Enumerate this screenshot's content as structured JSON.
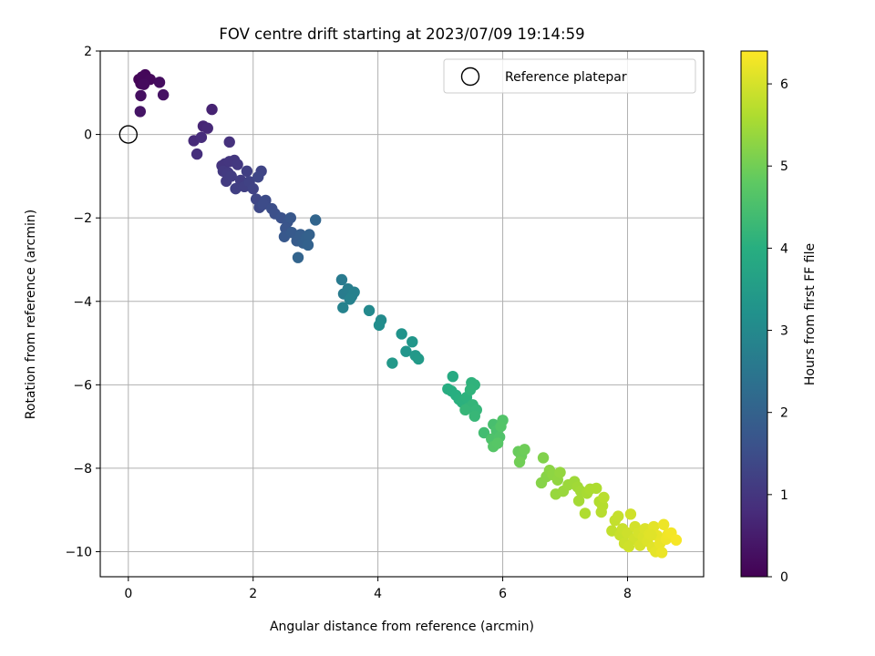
{
  "chart_data": {
    "type": "scatter",
    "title": "FOV centre drift starting at 2023/07/09 19:14:59",
    "xlabel": "Angular distance from reference (arcmin)",
    "ylabel": "Rotation from reference (arcmin)",
    "xlim": [
      -0.45,
      9.22
    ],
    "ylim": [
      -10.6,
      2.0
    ],
    "xticks": [
      0,
      2,
      4,
      6,
      8
    ],
    "yticks": [
      2,
      0,
      -2,
      -4,
      -6,
      -8,
      -10
    ],
    "grid": true,
    "legend": {
      "placement": "top-right",
      "entries": [
        "Reference platepar"
      ]
    },
    "reference_point": {
      "x": 0,
      "y": 0
    },
    "colorbar": {
      "label": "Hours from first FF file",
      "range": [
        0,
        6.4
      ],
      "ticks": [
        0,
        1,
        2,
        3,
        4,
        5,
        6
      ],
      "colormap": "viridis"
    },
    "points": [
      {
        "x": 0.17,
        "y": 1.32,
        "h": 0.05
      },
      {
        "x": 0.2,
        "y": 1.22,
        "h": 0.08
      },
      {
        "x": 0.27,
        "y": 1.43,
        "h": 0.1
      },
      {
        "x": 0.22,
        "y": 1.38,
        "h": 0.12
      },
      {
        "x": 0.35,
        "y": 1.32,
        "h": 0.15
      },
      {
        "x": 0.25,
        "y": 1.2,
        "h": 0.18
      },
      {
        "x": 0.5,
        "y": 1.25,
        "h": 0.22
      },
      {
        "x": 0.2,
        "y": 0.93,
        "h": 0.25
      },
      {
        "x": 0.56,
        "y": 0.95,
        "h": 0.3
      },
      {
        "x": 0.19,
        "y": 0.55,
        "h": 0.35
      },
      {
        "x": 1.34,
        "y": 0.6,
        "h": 0.62
      },
      {
        "x": 1.2,
        "y": 0.2,
        "h": 0.68
      },
      {
        "x": 1.27,
        "y": 0.15,
        "h": 0.72
      },
      {
        "x": 1.05,
        "y": -0.15,
        "h": 0.76
      },
      {
        "x": 1.17,
        "y": -0.07,
        "h": 0.8
      },
      {
        "x": 1.1,
        "y": -0.47,
        "h": 0.84
      },
      {
        "x": 1.62,
        "y": -0.18,
        "h": 0.9
      },
      {
        "x": 1.5,
        "y": -0.75,
        "h": 0.95
      },
      {
        "x": 1.55,
        "y": -0.7,
        "h": 0.97
      },
      {
        "x": 1.62,
        "y": -0.65,
        "h": 1.0
      },
      {
        "x": 1.7,
        "y": -0.62,
        "h": 1.02
      },
      {
        "x": 1.75,
        "y": -0.72,
        "h": 1.04
      },
      {
        "x": 1.52,
        "y": -0.88,
        "h": 1.06
      },
      {
        "x": 1.6,
        "y": -0.92,
        "h": 1.08
      },
      {
        "x": 1.57,
        "y": -1.12,
        "h": 1.1
      },
      {
        "x": 1.65,
        "y": -1.0,
        "h": 1.12
      },
      {
        "x": 1.8,
        "y": -1.1,
        "h": 1.15
      },
      {
        "x": 1.72,
        "y": -1.3,
        "h": 1.18
      },
      {
        "x": 1.9,
        "y": -0.88,
        "h": 1.2
      },
      {
        "x": 1.86,
        "y": -1.25,
        "h": 1.22
      },
      {
        "x": 1.94,
        "y": -1.13,
        "h": 1.25
      },
      {
        "x": 2.0,
        "y": -1.3,
        "h": 1.28
      },
      {
        "x": 2.13,
        "y": -0.88,
        "h": 1.3
      },
      {
        "x": 2.08,
        "y": -1.02,
        "h": 1.33
      },
      {
        "x": 2.05,
        "y": -1.55,
        "h": 1.36
      },
      {
        "x": 2.1,
        "y": -1.75,
        "h": 1.4
      },
      {
        "x": 2.2,
        "y": -1.58,
        "h": 1.44
      },
      {
        "x": 2.16,
        "y": -1.68,
        "h": 1.48
      },
      {
        "x": 2.3,
        "y": -1.78,
        "h": 1.52
      },
      {
        "x": 2.35,
        "y": -1.9,
        "h": 1.56
      },
      {
        "x": 2.45,
        "y": -2.0,
        "h": 1.6
      },
      {
        "x": 2.55,
        "y": -2.1,
        "h": 1.64
      },
      {
        "x": 2.52,
        "y": -2.25,
        "h": 1.68
      },
      {
        "x": 2.6,
        "y": -2.0,
        "h": 1.72
      },
      {
        "x": 2.5,
        "y": -2.45,
        "h": 1.76
      },
      {
        "x": 2.62,
        "y": -2.35,
        "h": 1.8
      },
      {
        "x": 2.7,
        "y": -2.55,
        "h": 1.84
      },
      {
        "x": 2.76,
        "y": -2.4,
        "h": 1.88
      },
      {
        "x": 2.8,
        "y": -2.6,
        "h": 1.92
      },
      {
        "x": 2.85,
        "y": -2.5,
        "h": 1.95
      },
      {
        "x": 2.9,
        "y": -2.4,
        "h": 1.98
      },
      {
        "x": 2.88,
        "y": -2.65,
        "h": 2.0
      },
      {
        "x": 2.72,
        "y": -2.95,
        "h": 2.04
      },
      {
        "x": 3.0,
        "y": -2.05,
        "h": 2.08
      },
      {
        "x": 3.42,
        "y": -3.48,
        "h": 2.6
      },
      {
        "x": 3.45,
        "y": -3.82,
        "h": 2.64
      },
      {
        "x": 3.52,
        "y": -3.7,
        "h": 2.68
      },
      {
        "x": 3.58,
        "y": -3.88,
        "h": 2.72
      },
      {
        "x": 3.62,
        "y": -3.78,
        "h": 2.75
      },
      {
        "x": 3.55,
        "y": -3.95,
        "h": 2.78
      },
      {
        "x": 3.44,
        "y": -4.15,
        "h": 2.82
      },
      {
        "x": 3.86,
        "y": -4.22,
        "h": 3.0
      },
      {
        "x": 4.05,
        "y": -4.45,
        "h": 3.05
      },
      {
        "x": 4.02,
        "y": -4.57,
        "h": 3.1
      },
      {
        "x": 4.38,
        "y": -4.78,
        "h": 3.25
      },
      {
        "x": 4.45,
        "y": -5.2,
        "h": 3.3
      },
      {
        "x": 4.55,
        "y": -4.97,
        "h": 3.35
      },
      {
        "x": 4.6,
        "y": -5.3,
        "h": 3.4
      },
      {
        "x": 4.65,
        "y": -5.38,
        "h": 3.45
      },
      {
        "x": 4.23,
        "y": -5.48,
        "h": 3.38
      },
      {
        "x": 5.2,
        "y": -5.8,
        "h": 3.9
      },
      {
        "x": 5.12,
        "y": -6.1,
        "h": 3.95
      },
      {
        "x": 5.18,
        "y": -6.15,
        "h": 3.98
      },
      {
        "x": 5.25,
        "y": -6.25,
        "h": 4.0
      },
      {
        "x": 5.3,
        "y": -6.35,
        "h": 4.03
      },
      {
        "x": 5.35,
        "y": -6.42,
        "h": 4.06
      },
      {
        "x": 5.42,
        "y": -6.3,
        "h": 4.08
      },
      {
        "x": 5.5,
        "y": -5.95,
        "h": 4.1
      },
      {
        "x": 5.55,
        "y": -6.0,
        "h": 4.12
      },
      {
        "x": 5.48,
        "y": -6.12,
        "h": 4.14
      },
      {
        "x": 5.45,
        "y": -6.55,
        "h": 4.16
      },
      {
        "x": 5.52,
        "y": -6.48,
        "h": 4.18
      },
      {
        "x": 5.58,
        "y": -6.6,
        "h": 4.2
      },
      {
        "x": 5.4,
        "y": -6.6,
        "h": 4.22
      },
      {
        "x": 5.55,
        "y": -6.75,
        "h": 4.24
      },
      {
        "x": 5.7,
        "y": -7.15,
        "h": 4.4
      },
      {
        "x": 5.85,
        "y": -6.95,
        "h": 4.48
      },
      {
        "x": 5.9,
        "y": -7.1,
        "h": 4.52
      },
      {
        "x": 5.82,
        "y": -7.3,
        "h": 4.56
      },
      {
        "x": 5.95,
        "y": -7.25,
        "h": 4.6
      },
      {
        "x": 6.0,
        "y": -6.85,
        "h": 4.62
      },
      {
        "x": 5.97,
        "y": -7.0,
        "h": 4.64
      },
      {
        "x": 5.85,
        "y": -7.48,
        "h": 4.68
      },
      {
        "x": 5.92,
        "y": -7.4,
        "h": 4.7
      },
      {
        "x": 6.25,
        "y": -7.6,
        "h": 4.9
      },
      {
        "x": 6.3,
        "y": -7.7,
        "h": 4.93
      },
      {
        "x": 6.35,
        "y": -7.55,
        "h": 4.96
      },
      {
        "x": 6.27,
        "y": -7.85,
        "h": 4.99
      },
      {
        "x": 6.65,
        "y": -7.75,
        "h": 5.15
      },
      {
        "x": 6.62,
        "y": -8.35,
        "h": 5.2
      },
      {
        "x": 6.7,
        "y": -8.2,
        "h": 5.23
      },
      {
        "x": 6.75,
        "y": -8.05,
        "h": 5.26
      },
      {
        "x": 6.8,
        "y": -8.15,
        "h": 5.29
      },
      {
        "x": 6.88,
        "y": -8.28,
        "h": 5.32
      },
      {
        "x": 6.92,
        "y": -8.1,
        "h": 5.35
      },
      {
        "x": 6.85,
        "y": -8.62,
        "h": 5.38
      },
      {
        "x": 6.97,
        "y": -8.55,
        "h": 5.4
      },
      {
        "x": 7.05,
        "y": -8.4,
        "h": 5.42
      },
      {
        "x": 7.15,
        "y": -8.32,
        "h": 5.45
      },
      {
        "x": 7.2,
        "y": -8.45,
        "h": 5.48
      },
      {
        "x": 7.25,
        "y": -8.55,
        "h": 5.5
      },
      {
        "x": 7.22,
        "y": -8.78,
        "h": 5.52
      },
      {
        "x": 7.35,
        "y": -8.6,
        "h": 5.55
      },
      {
        "x": 7.4,
        "y": -8.5,
        "h": 5.58
      },
      {
        "x": 7.5,
        "y": -8.48,
        "h": 5.6
      },
      {
        "x": 7.32,
        "y": -9.08,
        "h": 5.62
      },
      {
        "x": 7.55,
        "y": -8.8,
        "h": 5.65
      },
      {
        "x": 7.6,
        "y": -8.9,
        "h": 5.68
      },
      {
        "x": 7.58,
        "y": -9.05,
        "h": 5.7
      },
      {
        "x": 7.62,
        "y": -8.7,
        "h": 5.72
      },
      {
        "x": 7.75,
        "y": -9.5,
        "h": 5.8
      },
      {
        "x": 7.8,
        "y": -9.25,
        "h": 5.82
      },
      {
        "x": 7.85,
        "y": -9.15,
        "h": 5.84
      },
      {
        "x": 7.88,
        "y": -9.6,
        "h": 5.86
      },
      {
        "x": 7.92,
        "y": -9.45,
        "h": 5.88
      },
      {
        "x": 7.95,
        "y": -9.8,
        "h": 5.9
      },
      {
        "x": 8.0,
        "y": -9.55,
        "h": 5.92
      },
      {
        "x": 8.05,
        "y": -9.1,
        "h": 5.94
      },
      {
        "x": 8.1,
        "y": -9.7,
        "h": 5.96
      },
      {
        "x": 8.12,
        "y": -9.4,
        "h": 5.98
      },
      {
        "x": 8.18,
        "y": -9.55,
        "h": 6.0
      },
      {
        "x": 8.2,
        "y": -9.85,
        "h": 6.02
      },
      {
        "x": 8.25,
        "y": -9.65,
        "h": 6.04
      },
      {
        "x": 8.28,
        "y": -9.45,
        "h": 6.06
      },
      {
        "x": 8.32,
        "y": -9.75,
        "h": 6.08
      },
      {
        "x": 8.35,
        "y": -9.58,
        "h": 6.1
      },
      {
        "x": 8.4,
        "y": -9.9,
        "h": 6.12
      },
      {
        "x": 8.42,
        "y": -9.4,
        "h": 6.14
      },
      {
        "x": 8.45,
        "y": -10.0,
        "h": 6.16
      },
      {
        "x": 8.48,
        "y": -9.62,
        "h": 6.18
      },
      {
        "x": 8.52,
        "y": -9.8,
        "h": 6.2
      },
      {
        "x": 8.55,
        "y": -10.02,
        "h": 6.22
      },
      {
        "x": 8.58,
        "y": -9.35,
        "h": 6.24
      },
      {
        "x": 8.62,
        "y": -9.7,
        "h": 6.26
      },
      {
        "x": 8.65,
        "y": -9.58,
        "h": 6.28
      },
      {
        "x": 8.7,
        "y": -9.55,
        "h": 6.3
      },
      {
        "x": 8.78,
        "y": -9.72,
        "h": 6.33
      },
      {
        "x": 8.02,
        "y": -9.88,
        "h": 5.93
      },
      {
        "x": 8.38,
        "y": -9.6,
        "h": 6.11
      }
    ]
  }
}
